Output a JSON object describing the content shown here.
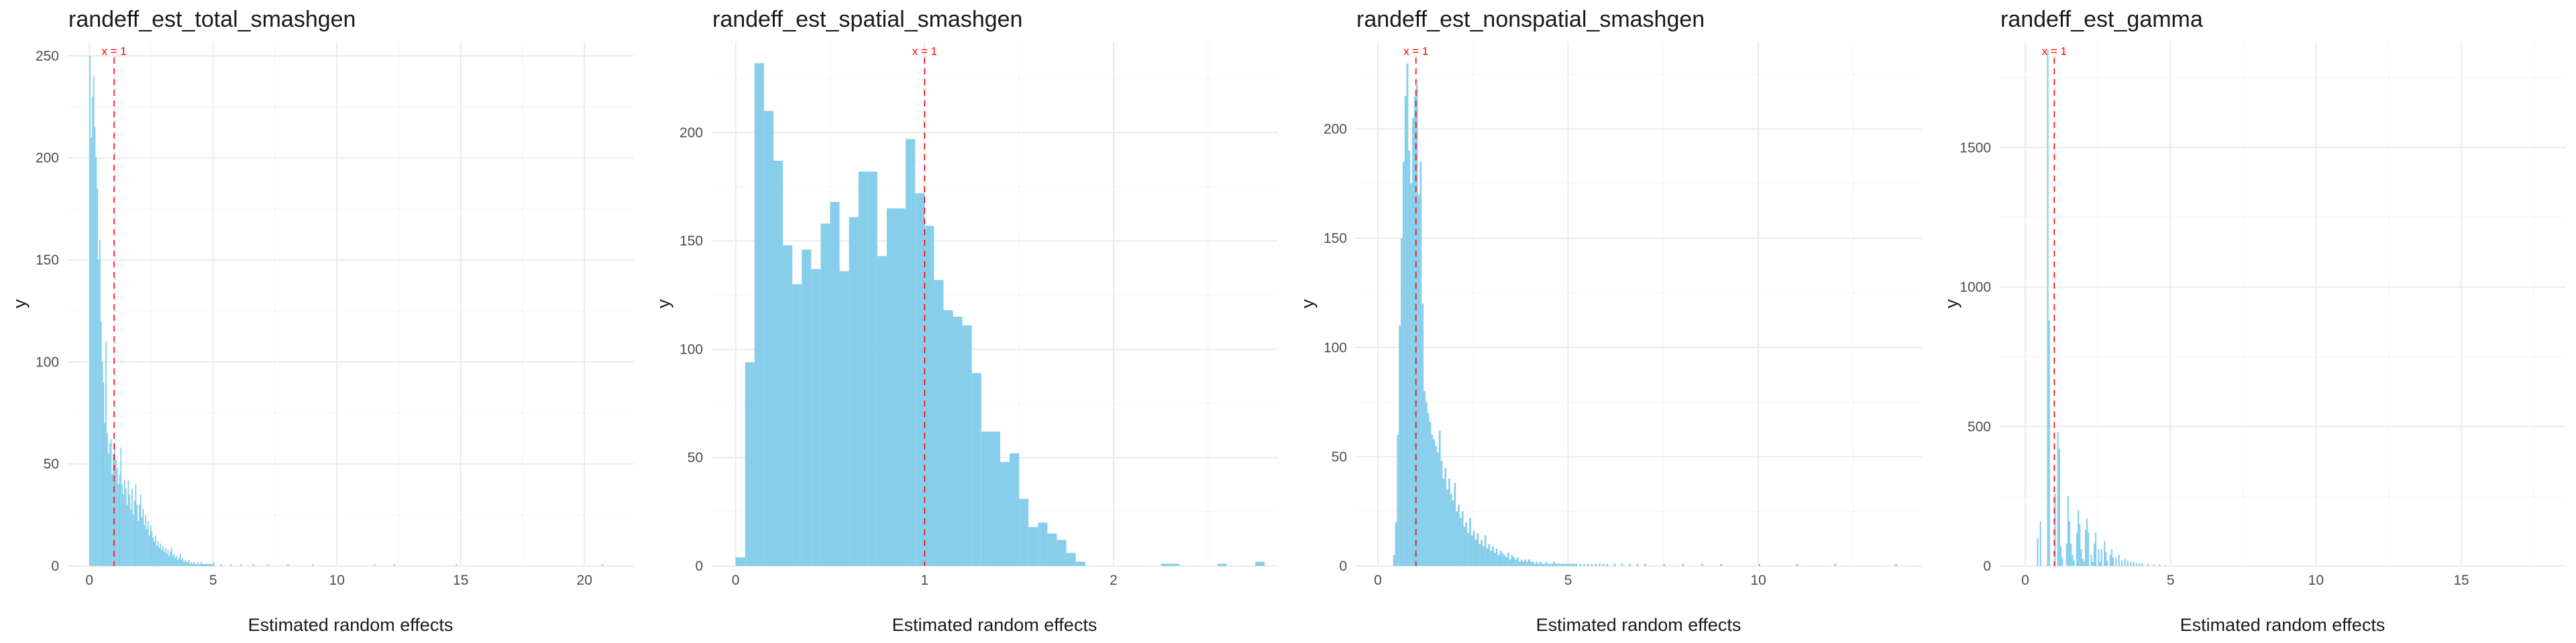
{
  "chart_data": [
    {
      "type": "bar",
      "title": "randeff_est_total_smashgen",
      "xlabel": "Estimated random effects",
      "ylabel": "y",
      "xlim": [
        -0.9,
        22.0
      ],
      "ylim": [
        0,
        257
      ],
      "xticks": [
        0,
        5,
        10,
        15,
        20
      ],
      "yticks": [
        0,
        50,
        100,
        150,
        200,
        250
      ],
      "grid": true,
      "bar_color": "#87ceeb",
      "ref_line": {
        "x": 1,
        "label": "x = 1",
        "color": "#ff0000"
      },
      "bin_width": 0.05,
      "x": [
        0.0,
        0.05,
        0.1,
        0.15,
        0.2,
        0.25,
        0.3,
        0.35,
        0.4,
        0.45,
        0.5,
        0.55,
        0.6,
        0.65,
        0.7,
        0.75,
        0.8,
        0.85,
        0.9,
        0.95,
        1.0,
        1.05,
        1.1,
        1.15,
        1.2,
        1.25,
        1.3,
        1.35,
        1.4,
        1.45,
        1.5,
        1.55,
        1.6,
        1.65,
        1.7,
        1.75,
        1.8,
        1.85,
        1.9,
        1.95,
        2.0,
        2.05,
        2.1,
        2.15,
        2.2,
        2.25,
        2.3,
        2.35,
        2.4,
        2.45,
        2.5,
        2.55,
        2.6,
        2.65,
        2.7,
        2.75,
        2.8,
        2.85,
        2.9,
        2.95,
        3.0,
        3.05,
        3.1,
        3.15,
        3.2,
        3.25,
        3.3,
        3.35,
        3.4,
        3.45,
        3.5,
        3.55,
        3.6,
        3.65,
        3.7,
        3.75,
        3.8,
        3.85,
        3.9,
        3.95,
        4.0,
        4.05,
        4.1,
        4.15,
        4.2,
        4.25,
        4.3,
        4.35,
        4.4,
        4.45,
        4.5,
        4.55,
        4.6,
        4.65,
        4.7,
        4.75,
        4.8,
        4.85,
        4.9,
        4.95,
        5.0,
        5.3,
        5.7,
        6.1,
        6.6,
        7.2,
        8.0,
        9.0,
        11.5,
        12.3,
        14.8,
        20.7
      ],
      "values": [
        250,
        210,
        230,
        240,
        215,
        200,
        185,
        150,
        160,
        120,
        100,
        90,
        70,
        110,
        65,
        55,
        60,
        62,
        45,
        55,
        60,
        52,
        48,
        40,
        45,
        58,
        40,
        35,
        42,
        38,
        30,
        42,
        35,
        28,
        38,
        25,
        32,
        40,
        30,
        22,
        30,
        35,
        24,
        28,
        20,
        25,
        18,
        22,
        15,
        20,
        17,
        14,
        12,
        15,
        10,
        12,
        9,
        11,
        8,
        10,
        7,
        9,
        6,
        8,
        5,
        7,
        9,
        5,
        6,
        4,
        5,
        3,
        4,
        6,
        3,
        4,
        2,
        3,
        2,
        2,
        3,
        1,
        2,
        1,
        2,
        1,
        1,
        2,
        1,
        1,
        2,
        1,
        1,
        1,
        1,
        1,
        1,
        1,
        1,
        1,
        2,
        1,
        1,
        1,
        1,
        1,
        1,
        1,
        1,
        1,
        1,
        1
      ]
    },
    {
      "type": "bar",
      "title": "randeff_est_spatial_smashgen",
      "xlabel": "Estimated random effects",
      "ylabel": "y",
      "xlim": [
        -0.13,
        2.87
      ],
      "ylim": [
        0,
        242
      ],
      "xticks": [
        0,
        1,
        2
      ],
      "yticks": [
        0,
        50,
        100,
        150,
        200
      ],
      "grid": true,
      "bar_color": "#87ceeb",
      "ref_line": {
        "x": 1,
        "label": "x = 1",
        "color": "#ff0000"
      },
      "bin_width": 0.05,
      "x": [
        0.0,
        0.05,
        0.1,
        0.15,
        0.2,
        0.25,
        0.3,
        0.35,
        0.4,
        0.45,
        0.5,
        0.55,
        0.6,
        0.65,
        0.7,
        0.75,
        0.8,
        0.85,
        0.9,
        0.95,
        1.0,
        1.05,
        1.1,
        1.15,
        1.2,
        1.25,
        1.3,
        1.35,
        1.4,
        1.45,
        1.5,
        1.55,
        1.6,
        1.65,
        1.7,
        1.75,
        1.8,
        1.85,
        1.9,
        1.95,
        2.0,
        2.05,
        2.1,
        2.15,
        2.2,
        2.25,
        2.3,
        2.35,
        2.4,
        2.45,
        2.5,
        2.55,
        2.6,
        2.65,
        2.7,
        2.75
      ],
      "values": [
        4,
        94,
        232,
        210,
        187,
        148,
        130,
        146,
        137,
        158,
        168,
        136,
        161,
        182,
        182,
        143,
        165,
        165,
        197,
        172,
        157,
        132,
        118,
        115,
        111,
        89,
        62,
        62,
        48,
        52,
        31,
        18,
        20,
        15,
        12,
        6,
        2,
        0,
        0,
        0,
        0,
        0,
        0,
        0,
        0,
        1,
        1,
        0,
        0,
        0,
        0,
        1,
        0,
        0,
        0,
        2
      ]
    },
    {
      "type": "bar",
      "title": "randeff_est_nonspatial_smashgen",
      "xlabel": "Estimated random effects",
      "ylabel": "y",
      "xlim": [
        -0.6,
        14.3
      ],
      "ylim": [
        0,
        240
      ],
      "xticks": [
        0,
        5,
        10
      ],
      "yticks": [
        0,
        50,
        100,
        150,
        200
      ],
      "grid": true,
      "bar_color": "#87ceeb",
      "ref_line": {
        "x": 1,
        "label": "x = 1",
        "color": "#ff0000"
      },
      "bin_width": 0.05,
      "x": [
        0.4,
        0.45,
        0.5,
        0.55,
        0.6,
        0.65,
        0.7,
        0.75,
        0.8,
        0.85,
        0.9,
        0.95,
        1.0,
        1.05,
        1.1,
        1.15,
        1.2,
        1.25,
        1.3,
        1.35,
        1.4,
        1.45,
        1.5,
        1.55,
        1.6,
        1.65,
        1.7,
        1.75,
        1.8,
        1.85,
        1.9,
        1.95,
        2.0,
        2.05,
        2.1,
        2.15,
        2.2,
        2.25,
        2.3,
        2.35,
        2.4,
        2.45,
        2.5,
        2.55,
        2.6,
        2.65,
        2.7,
        2.75,
        2.8,
        2.85,
        2.9,
        2.95,
        3.0,
        3.05,
        3.1,
        3.15,
        3.2,
        3.25,
        3.3,
        3.35,
        3.4,
        3.45,
        3.5,
        3.55,
        3.6,
        3.65,
        3.7,
        3.75,
        3.8,
        3.85,
        3.9,
        3.95,
        4.0,
        4.05,
        4.1,
        4.15,
        4.2,
        4.25,
        4.3,
        4.35,
        4.4,
        4.45,
        4.5,
        4.55,
        4.6,
        4.65,
        4.7,
        4.75,
        4.8,
        4.85,
        4.9,
        4.95,
        5.0,
        5.05,
        5.1,
        5.15,
        5.2,
        5.3,
        5.4,
        5.5,
        5.6,
        5.7,
        5.8,
        5.9,
        6.0,
        6.2,
        6.4,
        6.6,
        6.8,
        7.0,
        7.5,
        8.0,
        8.5,
        9.0,
        10.0,
        11.0,
        12.0,
        13.6
      ],
      "values": [
        5,
        20,
        60,
        110,
        150,
        185,
        215,
        230,
        190,
        175,
        205,
        215,
        220,
        170,
        185,
        120,
        80,
        75,
        70,
        66,
        60,
        58,
        55,
        52,
        62,
        48,
        40,
        45,
        35,
        40,
        33,
        30,
        38,
        25,
        28,
        22,
        25,
        18,
        20,
        15,
        22,
        14,
        16,
        12,
        15,
        10,
        12,
        9,
        14,
        8,
        10,
        7,
        9,
        6,
        8,
        5,
        7,
        6,
        5,
        4,
        6,
        3,
        5,
        4,
        3,
        4,
        2,
        3,
        2,
        3,
        2,
        3,
        2,
        2,
        1,
        2,
        1,
        2,
        1,
        1,
        2,
        1,
        1,
        1,
        2,
        1,
        1,
        1,
        1,
        1,
        1,
        1,
        1,
        1,
        1,
        1,
        1,
        1,
        1,
        1,
        1,
        1,
        1,
        1,
        1,
        1,
        1,
        1,
        1,
        1,
        1,
        1,
        1,
        1,
        1,
        1,
        1,
        1
      ]
    },
    {
      "type": "bar",
      "title": "randeff_est_gamma",
      "xlabel": "Estimated random effects",
      "ylabel": "y",
      "xlim": [
        -0.9,
        18.6
      ],
      "ylim": [
        0,
        1880
      ],
      "xticks": [
        0,
        5,
        10,
        15
      ],
      "yticks": [
        0,
        500,
        1000,
        1500
      ],
      "grid": true,
      "bar_color": "#87ceeb",
      "ref_line": {
        "x": 1,
        "label": "x = 1",
        "color": "#ff0000"
      },
      "bin_width": 0.05,
      "x": [
        0.4,
        0.5,
        0.75,
        0.8,
        1.0,
        1.1,
        1.15,
        1.2,
        1.25,
        1.4,
        1.45,
        1.5,
        1.55,
        1.6,
        1.65,
        1.75,
        1.8,
        1.85,
        1.9,
        1.95,
        2.0,
        2.05,
        2.1,
        2.15,
        2.25,
        2.3,
        2.35,
        2.4,
        2.5,
        2.55,
        2.6,
        2.7,
        2.75,
        2.8,
        2.9,
        2.95,
        3.0,
        3.1,
        3.2,
        3.3,
        3.4,
        3.5,
        3.6,
        3.7,
        3.8,
        3.9,
        4.0,
        4.2,
        4.4,
        4.6,
        4.8
      ],
      "values": [
        100,
        160,
        1850,
        880,
        260,
        480,
        420,
        70,
        30,
        80,
        250,
        160,
        80,
        40,
        20,
        120,
        200,
        150,
        60,
        25,
        15,
        130,
        170,
        120,
        40,
        15,
        80,
        120,
        60,
        15,
        60,
        90,
        50,
        20,
        40,
        60,
        30,
        30,
        40,
        20,
        25,
        20,
        15,
        15,
        10,
        10,
        10,
        8,
        5,
        5,
        3
      ]
    }
  ]
}
